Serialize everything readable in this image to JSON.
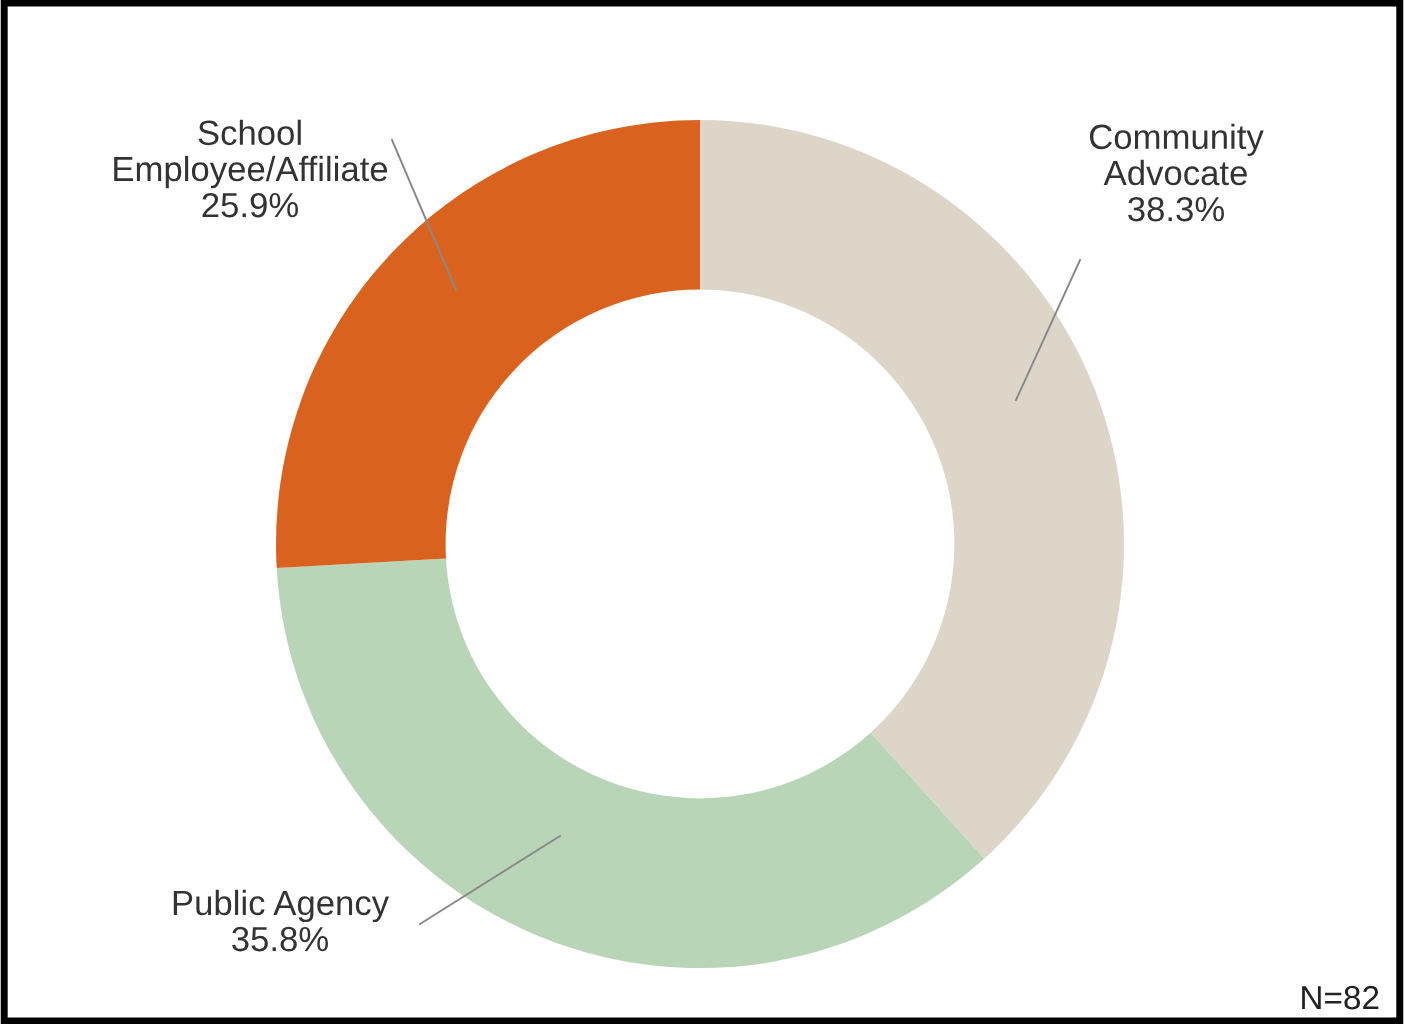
{
  "chart_data": {
    "type": "donut",
    "categories": [
      "Community Advocate",
      "Public Agency",
      "School Employee/Affiliate"
    ],
    "values": [
      38.3,
      35.8,
      25.9
    ],
    "value_labels": [
      "38.3%",
      "35.8%",
      "25.9%"
    ],
    "colors": [
      "#ddd5c8",
      "#b9d5b8",
      "#d9631e"
    ],
    "annotations": [
      "N=82"
    ]
  }
}
